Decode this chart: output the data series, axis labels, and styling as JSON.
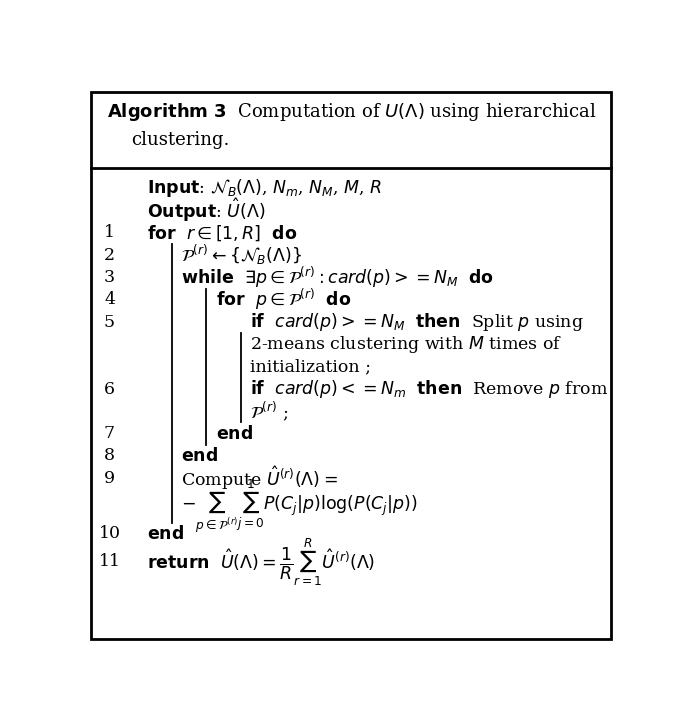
{
  "bg_color": "#ffffff",
  "border_color": "#000000",
  "text_color": "#000000",
  "figsize": [
    6.85,
    7.24
  ],
  "dpi": 100
}
